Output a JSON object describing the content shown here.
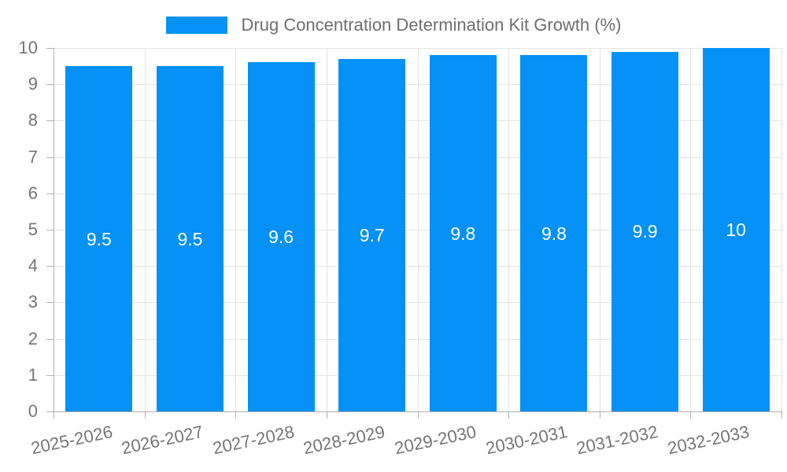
{
  "page": {
    "background": "#ffffff"
  },
  "legend": {
    "label": "Drug Concentration Determination Kit Growth (%)",
    "swatch_color": "#0591f5",
    "text_color": "#6e6e6e"
  },
  "chart_data": {
    "type": "bar",
    "title": "Drug Concentration Determination Kit Growth (%)",
    "categories": [
      "2025-2026",
      "2026-2027",
      "2027-2028",
      "2028-2029",
      "2029-2030",
      "2030-2031",
      "2031-2032",
      "2032-2033"
    ],
    "series": [
      {
        "name": "Drug Concentration Determination Kit Growth (%)",
        "values": [
          9.5,
          9.5,
          9.6,
          9.7,
          9.8,
          9.8,
          9.9,
          10
        ],
        "color": "#0591f5"
      }
    ],
    "value_labels": [
      "9.5",
      "9.5",
      "9.6",
      "9.7",
      "9.8",
      "9.8",
      "9.9",
      "10"
    ],
    "xlabel": "",
    "ylabel": "",
    "ylim": [
      0,
      10
    ],
    "yticks": [
      0,
      1,
      2,
      3,
      4,
      5,
      6,
      7,
      8,
      9,
      10
    ],
    "grid": true,
    "x_tick_rotation_deg": -12,
    "legend_position": "top-center",
    "colors": {
      "bar": "#0591f5",
      "value_label_text": "#ffffff",
      "axis_label": "#757575",
      "axis_line": "#b0b0b0",
      "gridline": "#e3e3e3"
    }
  }
}
